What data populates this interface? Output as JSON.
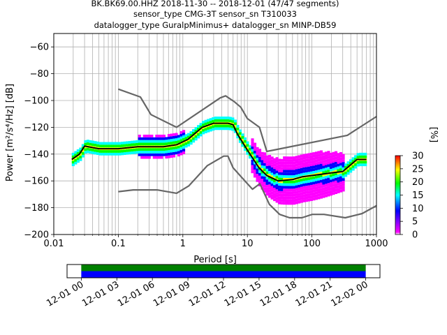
{
  "chart_data": [
    {
      "type": "heatmap",
      "title_lines": [
        "BK.BK69.00.HHZ   2018-11-30 -- 2018-12-01  (47/47 segments)",
        "sensor_type CMG-3T sensor_sn T310033",
        "datalogger_type GuralpMinimus+ datalogger_sn MINP-DB59"
      ],
      "xlabel": "Period [s]",
      "ylabel": "Power [m²/s⁴/Hz] [dB]",
      "x_scale": "log",
      "xlim": [
        0.01,
        1000
      ],
      "ylim": [
        -200,
        -50
      ],
      "x_ticks": [
        0.01,
        0.1,
        1,
        10,
        100,
        1000
      ],
      "x_tick_labels": [
        "0.01",
        "0.1",
        "1",
        "10",
        "100",
        "1000"
      ],
      "y_ticks": [
        -200,
        -180,
        -160,
        -140,
        -120,
        -100,
        -80,
        -60
      ],
      "y_tick_labels": [
        "−200",
        "−180",
        "−160",
        "−140",
        "−120",
        "−100",
        "−80",
        "−60"
      ],
      "grid": true,
      "colorbar": {
        "label": "[%]",
        "range": [
          0,
          30
        ],
        "ticks": [
          0,
          5,
          10,
          15,
          20,
          25,
          30
        ],
        "tick_labels": [
          "0",
          "5",
          "10",
          "15",
          "20",
          "25",
          "30"
        ],
        "colormap": [
          "#ffffff",
          "#ff00ff",
          "#0000ff",
          "#00ffff",
          "#00ff00",
          "#ffff00",
          "#ff0000"
        ]
      },
      "series": [
        {
          "name": "",
          "style": "noise-model",
          "color": "#666666",
          "x": [
            0.1,
            0.22,
            0.32,
            0.8,
            3.8,
            4.6,
            6.3,
            7.9,
            10,
            15.4,
            20,
            354,
            1000
          ],
          "y": [
            -91.5,
            -97.4,
            -110.5,
            -120,
            -98,
            -96.5,
            -101,
            -105,
            -113.5,
            -120,
            -138,
            -126,
            -112
          ]
        },
        {
          "name": "",
          "style": "noise-model",
          "color": "#666666",
          "x": [
            0.1,
            0.17,
            0.4,
            0.8,
            1.24,
            2.4,
            4.3,
            5,
            6,
            10,
            12,
            15.6,
            21.9,
            31.6,
            45,
            70,
            101,
            154,
            328,
            600,
            1000
          ],
          "y": [
            -168,
            -166.7,
            -166.7,
            -169.2,
            -163.7,
            -148.6,
            -141.5,
            -141.5,
            -150.2,
            -162.1,
            -166.2,
            -162.1,
            -177.5,
            -185,
            -187.5,
            -187.5,
            -185,
            -185,
            -187.5,
            -184.4,
            -178.5
          ]
        },
        {
          "name": "",
          "style": "median",
          "color": "#000000",
          "x": [
            0.019,
            0.025,
            0.03,
            0.05,
            0.1,
            0.2,
            0.5,
            0.8,
            1.2,
            2,
            3,
            5,
            6,
            7,
            10,
            15,
            20,
            30,
            50,
            70,
            100,
            200,
            300,
            500,
            700
          ],
          "y": [
            -144,
            -140,
            -134,
            -136,
            -136,
            -134.5,
            -134.5,
            -133,
            -129,
            -120,
            -117,
            -117,
            -118,
            -125,
            -137,
            -150,
            -156,
            -160,
            -159,
            -157,
            -156,
            -154,
            -153,
            -144,
            -144
          ]
        }
      ]
    },
    {
      "type": "timeline",
      "x_tick_labels": [
        "12-01 00",
        "12-01 03",
        "12-01 06",
        "12-01 09",
        "12-01 12",
        "12-01 15",
        "12-01 18",
        "12-01 21",
        "12-02 00"
      ],
      "x_ticks_hours": [
        0,
        3,
        6,
        9,
        12,
        15,
        18,
        21,
        24
      ],
      "xlim_hours": [
        -1.2,
        25.2
      ],
      "coverage_hours": [
        0,
        24
      ],
      "bar_colors": [
        "#008000",
        "#0000ff"
      ]
    }
  ]
}
